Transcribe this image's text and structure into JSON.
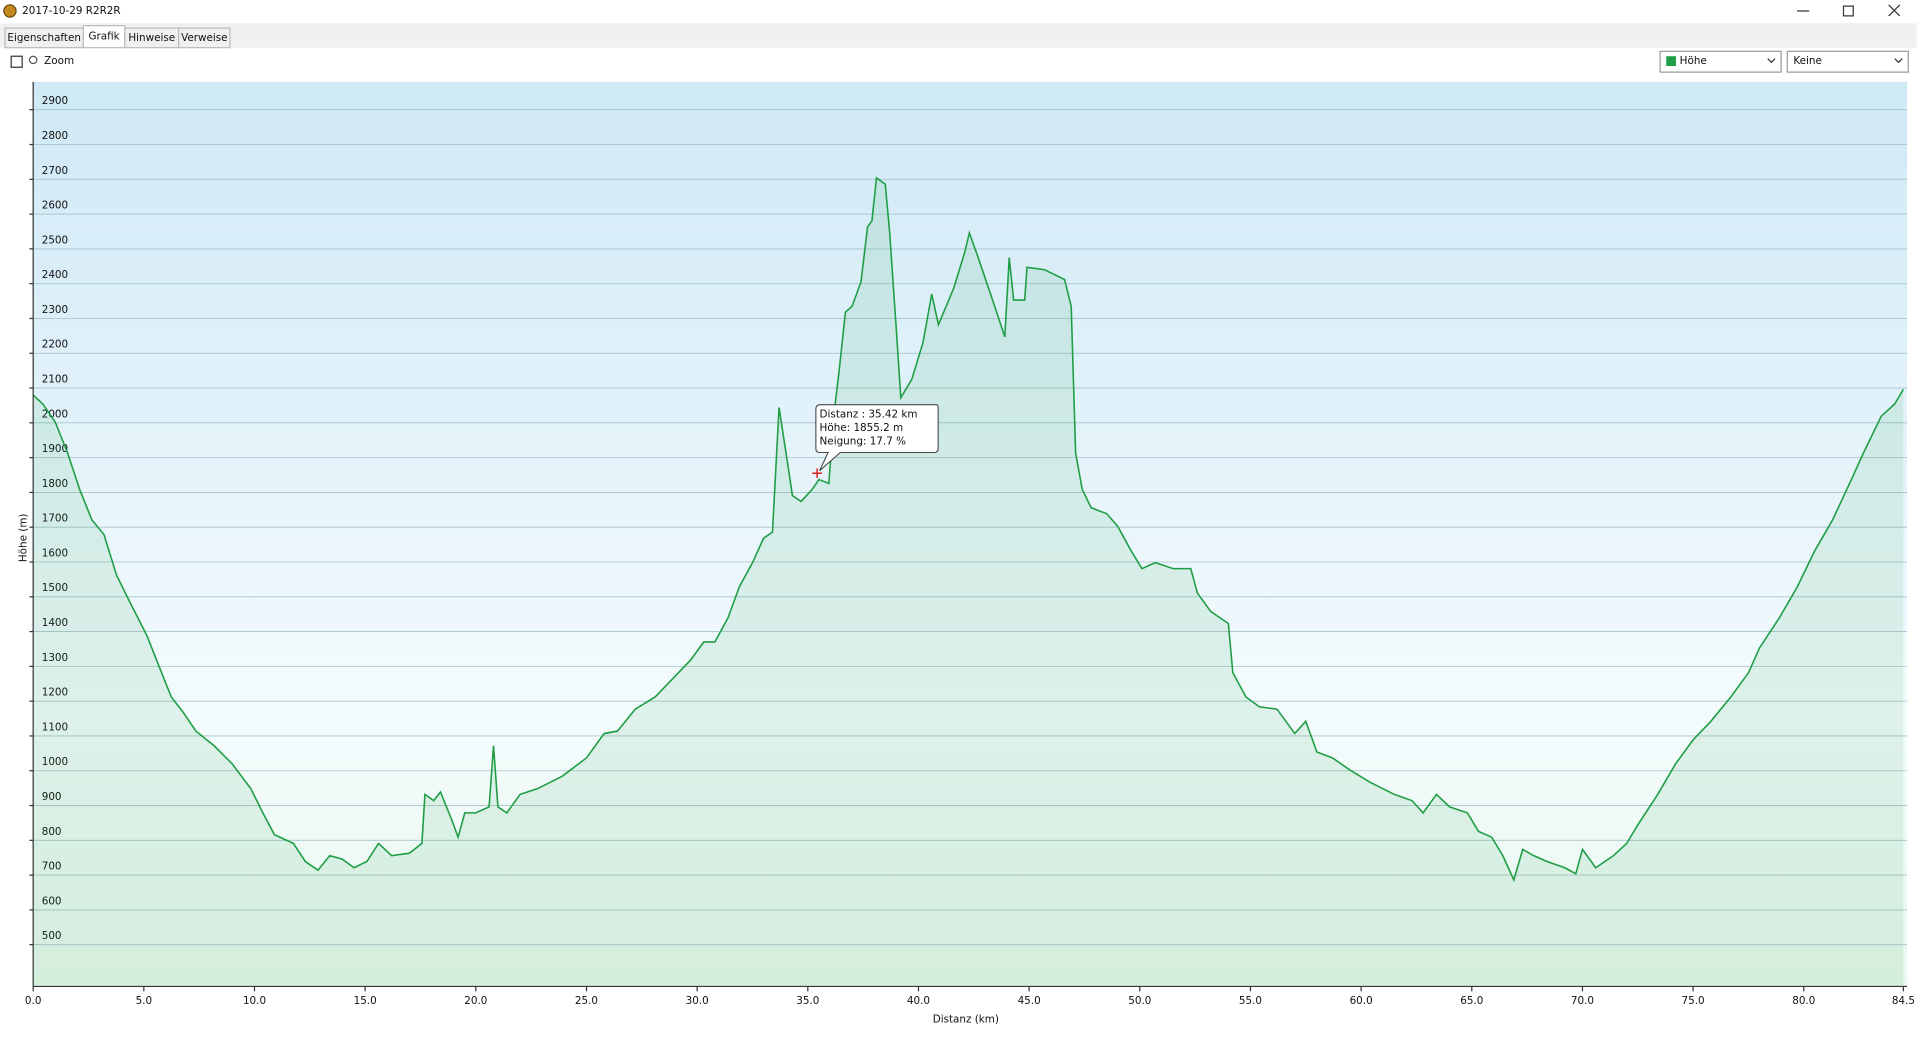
{
  "window": {
    "title": "2017-10-29 R2R2R"
  },
  "tabs": [
    "Eigenschaften",
    "Grafik",
    "Hinweise",
    "Verweise"
  ],
  "zoom_label": "Zoom",
  "second_dropdown": "Keine",
  "tooltip": {
    "x": 35.42,
    "y": 1855.2,
    "lines": [
      "Distanz : 35.42 km",
      "Höhe: 1855.2 m",
      "Neigung: 17.7 %"
    ]
  },
  "chart_data": {
    "type": "line",
    "x_label": "Distanz  (km)",
    "y_label": "Höhe (m)",
    "xlim": [
      0,
      84.5
    ],
    "ylim": [
      380,
      2980
    ],
    "xticks": [
      {
        "value": 0,
        "label": "0.0"
      },
      {
        "value": 5,
        "label": "5.0"
      },
      {
        "value": 10,
        "label": "10.0"
      },
      {
        "value": 15,
        "label": "15.0"
      },
      {
        "value": 20,
        "label": "20.0"
      },
      {
        "value": 25,
        "label": "25.0"
      },
      {
        "value": 30,
        "label": "30.0"
      },
      {
        "value": 35,
        "label": "35.0"
      },
      {
        "value": 40,
        "label": "40.0"
      },
      {
        "value": 45,
        "label": "45.0"
      },
      {
        "value": 50,
        "label": "50.0"
      },
      {
        "value": 55,
        "label": "55.0"
      },
      {
        "value": 60,
        "label": "60.0"
      },
      {
        "value": 65,
        "label": "65.0"
      },
      {
        "value": 70,
        "label": "70.0"
      },
      {
        "value": 75,
        "label": "75.0"
      },
      {
        "value": 80,
        "label": "80.0"
      },
      84.5
    ],
    "yticks": [
      500,
      600,
      700,
      800,
      900,
      1000,
      1100,
      1200,
      1300,
      1400,
      1500,
      1600,
      1700,
      1800,
      1900,
      2000,
      2100,
      2200,
      2300,
      2400,
      2500,
      2600,
      2700,
      2800,
      2900
    ],
    "grid": true,
    "fill": true,
    "x": [
      0,
      0.44,
      1.0,
      1.55,
      2.1,
      2.65,
      3.2,
      3.76,
      4.3,
      4.86,
      5.14,
      5.69,
      6.24,
      6.79,
      7.35,
      8.17,
      9.0,
      9.83,
      10.38,
      10.9,
      11.76,
      12.3,
      12.87,
      13.4,
      13.96,
      14.5,
      15.08,
      15.6,
      16.2,
      17.0,
      17.56,
      17.7,
      18.1,
      18.4,
      18.9,
      19.2,
      19.5,
      20.0,
      20.6,
      20.8,
      21.0,
      21.4,
      22.0,
      22.8,
      23.9,
      25.0,
      25.8,
      26.4,
      27.2,
      28.1,
      28.9,
      29.7,
      30.3,
      30.8,
      31.4,
      31.9,
      32.5,
      33.0,
      33.4,
      33.7,
      34.1,
      34.3,
      34.7,
      35.2,
      35.5,
      35.95,
      36.2,
      36.4,
      36.7,
      37.0,
      37.4,
      37.7,
      37.9,
      38.1,
      38.5,
      38.7,
      39.0,
      39.2,
      39.7,
      40.2,
      40.6,
      40.9,
      41.6,
      42.1,
      42.3,
      42.7,
      43.35,
      43.9,
      44.1,
      44.3,
      44.8,
      44.9,
      45.7,
      46.6,
      46.9,
      47.1,
      47.4,
      47.8,
      48.5,
      49.0,
      49.6,
      50.1,
      50.7,
      51.5,
      52.3,
      52.6,
      53.2,
      54.0,
      54.2,
      54.8,
      55.4,
      56.2,
      57.0,
      57.5,
      58.0,
      58.7,
      59.5,
      60.4,
      61.5,
      62.3,
      62.8,
      63.4,
      64.0,
      64.8,
      65.3,
      65.9,
      66.4,
      66.9,
      67.3,
      67.8,
      68.4,
      69.2,
      69.7,
      70.0,
      70.6,
      71.4,
      72.0,
      72.5,
      73.4,
      74.2,
      75.0,
      75.8,
      76.7,
      77.5,
      78.0,
      78.9,
      79.7,
      80.5,
      81.3,
      82.2,
      82.7,
      83.5,
      84.1,
      84.5
    ],
    "series": [
      {
        "name": "Höhe",
        "color": "#1f9e45",
        "values": [
          2080,
          2054,
          2002,
          1914,
          1809,
          1721,
          1679,
          1563,
          1493,
          1423,
          1388,
          1300,
          1212,
          1167,
          1114,
          1072,
          1019,
          949,
          879,
          816,
          791,
          739,
          714,
          756,
          746,
          721,
          739,
          791,
          756,
          763,
          791,
          932,
          914,
          939,
          861,
          809,
          879,
          879,
          896,
          1072,
          896,
          879,
          932,
          949,
          984,
          1037,
          1107,
          1114,
          1177,
          1212,
          1265,
          1318,
          1370,
          1370,
          1440,
          1528,
          1598,
          1668,
          1686,
          2044,
          1879,
          1791,
          1774,
          1809,
          1837,
          1826,
          2037,
          2142,
          2318,
          2335,
          2405,
          2563,
          2581,
          2704,
          2686,
          2546,
          2265,
          2072,
          2125,
          2230,
          2370,
          2282,
          2388,
          2493,
          2546,
          2475,
          2353,
          2247,
          2475,
          2353,
          2353,
          2447,
          2440,
          2412,
          2335,
          1914,
          1809,
          1756,
          1739,
          1703,
          1633,
          1581,
          1598,
          1581,
          1581,
          1511,
          1458,
          1423,
          1282,
          1212,
          1184,
          1177,
          1107,
          1142,
          1054,
          1037,
          1002,
          967,
          932,
          914,
          879,
          932,
          896,
          879,
          826,
          809,
          756,
          686,
          774,
          756,
          739,
          721,
          704,
          774,
          721,
          756,
          791,
          844,
          932,
          1019,
          1089,
          1142,
          1212,
          1282,
          1353,
          1440,
          1528,
          1633,
          1721,
          1844,
          1914,
          2019,
          2054,
          2096
        ]
      }
    ]
  }
}
